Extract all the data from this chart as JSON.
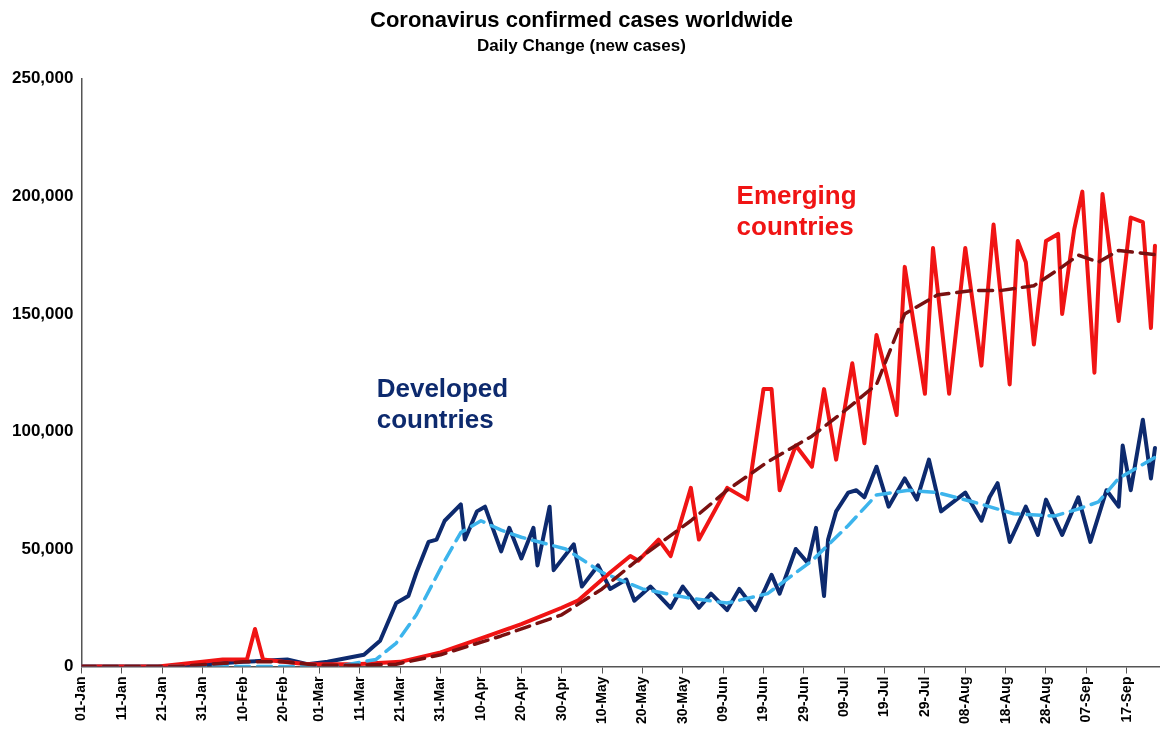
{
  "chart_data": {
    "type": "line",
    "title": "Coronavirus confirmed cases worldwide",
    "subtitle": "Daily Change (new cases)",
    "xlim": [
      "--01-01",
      "--09-25"
    ],
    "xticks": [
      {
        "value": "--01-01",
        "label": "01-Jan"
      },
      {
        "value": "--01-11",
        "label": "11-Jan"
      },
      {
        "value": "--01-21",
        "label": "21-Jan"
      },
      {
        "value": "--01-31",
        "label": "31-Jan"
      },
      {
        "value": "--02-10",
        "label": "10-Feb"
      },
      {
        "value": "--02-20",
        "label": "20-Feb"
      },
      {
        "value": "--03-01",
        "label": "01-Mar"
      },
      {
        "value": "--03-11",
        "label": "11-Mar"
      },
      {
        "value": "--03-21",
        "label": "21-Mar"
      },
      {
        "value": "--03-31",
        "label": "31-Mar"
      },
      {
        "value": "--04-10",
        "label": "10-Apr"
      },
      {
        "value": "--04-20",
        "label": "20-Apr"
      },
      {
        "value": "--04-30",
        "label": "30-Apr"
      },
      {
        "value": "--05-10",
        "label": "10-May"
      },
      {
        "value": "--05-20",
        "label": "20-May"
      },
      {
        "value": "--05-30",
        "label": "30-May"
      },
      {
        "value": "--06-09",
        "label": "09-Jun"
      },
      {
        "value": "--06-19",
        "label": "19-Jun"
      },
      {
        "value": "--06-29",
        "label": "29-Jun"
      },
      {
        "value": "--07-09",
        "label": "09-Jul"
      },
      {
        "value": "--07-19",
        "label": "19-Jul"
      },
      {
        "value": "--07-29",
        "label": "29-Jul"
      },
      {
        "value": "--08-08",
        "label": "08-Aug"
      },
      {
        "value": "--08-18",
        "label": "18-Aug"
      },
      {
        "value": "--08-28",
        "label": "28-Aug"
      },
      {
        "value": "--09-07",
        "label": "07-Sep"
      },
      {
        "value": "--09-17",
        "label": "17-Sep"
      }
    ],
    "ylim": [
      0,
      250000
    ],
    "yticks": [
      {
        "value": 0,
        "label": "0"
      },
      {
        "value": 50000,
        "label": "50,000"
      },
      {
        "value": 100000,
        "label": "100,000"
      },
      {
        "value": 150000,
        "label": "150,000"
      },
      {
        "value": 200000,
        "label": "200,000"
      },
      {
        "value": 250000,
        "label": "250,000"
      }
    ],
    "marker": "none",
    "series": [
      {
        "name": "Developed countries",
        "color": "#0d2a6e",
        "line_style": "solid",
        "x": [
          "--01-01",
          "--01-20",
          "--02-01",
          "--02-10",
          "--02-21",
          "--02-26",
          "--03-03",
          "--03-12",
          "--03-16",
          "--03-20",
          "--03-23",
          "--03-25",
          "--03-28",
          "--03-30",
          "--04-01",
          "--04-05",
          "--04-06",
          "--04-09",
          "--04-11",
          "--04-15",
          "--04-17",
          "--04-20",
          "--04-23",
          "--04-24",
          "--04-27",
          "--04-28",
          "--05-03",
          "--05-05",
          "--05-09",
          "--05-12",
          "--05-16",
          "--05-18",
          "--05-22",
          "--05-27",
          "--05-30",
          "--06-03",
          "--06-06",
          "--06-10",
          "--06-13",
          "--06-17",
          "--06-21",
          "--06-23",
          "--06-27",
          "--06-30",
          "--07-02",
          "--07-04",
          "--07-05",
          "--07-07",
          "--07-10",
          "--07-12",
          "--07-14",
          "--07-17",
          "--07-20",
          "--07-24",
          "--07-27",
          "--07-30",
          "--08-02",
          "--08-08",
          "--08-12",
          "--08-14",
          "--08-16",
          "--08-19",
          "--08-23",
          "--08-26",
          "--08-28",
          "--09-01",
          "--09-05",
          "--09-08",
          "--09-12",
          "--09-15",
          "--09-16",
          "--09-18",
          "--09-21",
          "--09-23",
          "--09-24"
        ],
        "values": [
          0,
          0,
          1000,
          2000,
          3000,
          1000,
          2000,
          5000,
          11000,
          27000,
          30000,
          40000,
          53000,
          54000,
          62000,
          69000,
          54000,
          66000,
          68000,
          49000,
          59000,
          46000,
          59000,
          43000,
          68000,
          41000,
          52000,
          34000,
          43000,
          33000,
          37000,
          28000,
          34000,
          25000,
          34000,
          25000,
          31000,
          24000,
          33000,
          24000,
          39000,
          31000,
          50000,
          44000,
          59000,
          30000,
          54000,
          66000,
          74000,
          75000,
          72000,
          85000,
          68000,
          80000,
          71000,
          88000,
          66000,
          74000,
          62000,
          72000,
          78000,
          53000,
          68000,
          56000,
          71000,
          56000,
          72000,
          53000,
          75000,
          68000,
          94000,
          75000,
          105000,
          80000,
          93000
        ]
      },
      {
        "name": "Emerging countries",
        "color": "#f01414",
        "line_style": "solid",
        "x": [
          "--01-01",
          "--01-20",
          "--01-31",
          "--02-05",
          "--02-11",
          "--02-13",
          "--02-15",
          "--02-20",
          "--02-26",
          "--03-10",
          "--03-21",
          "--03-31",
          "--04-10",
          "--04-20",
          "--04-30",
          "--05-04",
          "--05-12",
          "--05-17",
          "--05-19",
          "--05-24",
          "--05-27",
          "--06-01",
          "--06-03",
          "--06-10",
          "--06-15",
          "--06-19",
          "--06-21",
          "--06-23",
          "--06-27",
          "--07-01",
          "--07-04",
          "--07-07",
          "--07-11",
          "--07-14",
          "--07-17",
          "--07-22",
          "--07-24",
          "--07-29",
          "--07-31",
          "--08-04",
          "--08-08",
          "--08-12",
          "--08-15",
          "--08-19",
          "--08-21",
          "--08-23",
          "--08-25",
          "--08-28",
          "--08-31",
          "--09-01",
          "--09-04",
          "--09-06",
          "--09-09",
          "--09-11",
          "--09-15",
          "--09-18",
          "--09-21",
          "--09-23",
          "--09-24"
        ],
        "values": [
          0,
          0,
          2000,
          3000,
          3000,
          16000,
          3000,
          2000,
          1000,
          1000,
          2000,
          6000,
          12000,
          18000,
          25000,
          28000,
          40000,
          47000,
          45000,
          54000,
          47000,
          76000,
          54000,
          76000,
          71000,
          118000,
          118000,
          75000,
          94000,
          85000,
          118000,
          88000,
          129000,
          95000,
          141000,
          107000,
          170000,
          116000,
          178000,
          116000,
          178000,
          128000,
          188000,
          120000,
          181000,
          172000,
          137000,
          181000,
          184000,
          150000,
          186000,
          202000,
          125000,
          201000,
          147000,
          191000,
          189000,
          144000,
          179000
        ]
      },
      {
        "color": "#3cb4ec",
        "line_style": "dashed",
        "x": [
          "--01-01",
          "--03-05",
          "--03-15",
          "--03-20",
          "--03-25",
          "--04-01",
          "--04-05",
          "--04-10",
          "--04-15",
          "--04-20",
          "--05-01",
          "--05-10",
          "--05-20",
          "--06-01",
          "--06-10",
          "--06-20",
          "--07-01",
          "--07-10",
          "--07-17",
          "--07-25",
          "--08-01",
          "--08-10",
          "--08-20",
          "--08-30",
          "--09-05",
          "--09-10",
          "--09-15",
          "--09-20",
          "--09-25"
        ],
        "values": [
          0,
          0,
          3000,
          10000,
          22000,
          45000,
          57000,
          62000,
          58000,
          55000,
          50000,
          40000,
          33000,
          29000,
          27000,
          31000,
          45000,
          60000,
          73000,
          75000,
          74000,
          70000,
          65000,
          64000,
          67000,
          70000,
          80000,
          85000,
          90000
        ]
      },
      {
        "color": "#7a1010",
        "line_style": "dashed",
        "x": [
          "--01-01",
          "--01-25",
          "--02-10",
          "--02-20",
          "--03-01",
          "--03-10",
          "--03-20",
          "--03-31",
          "--04-15",
          "--04-30",
          "--05-10",
          "--05-20",
          "--06-01",
          "--06-10",
          "--06-20",
          "--07-01",
          "--07-10",
          "--07-17",
          "--07-24",
          "--08-01",
          "--08-10",
          "--08-17",
          "--08-25",
          "--09-01",
          "--09-05",
          "--09-10",
          "--09-15",
          "--09-20",
          "--09-25"
        ],
        "values": [
          0,
          0,
          2000,
          2000,
          500,
          500,
          1000,
          5000,
          13000,
          22000,
          33000,
          47000,
          62000,
          75000,
          87000,
          98000,
          110000,
          120000,
          150000,
          158000,
          160000,
          160000,
          162000,
          170000,
          175000,
          172000,
          177000,
          176000,
          175000
        ]
      }
    ]
  }
}
